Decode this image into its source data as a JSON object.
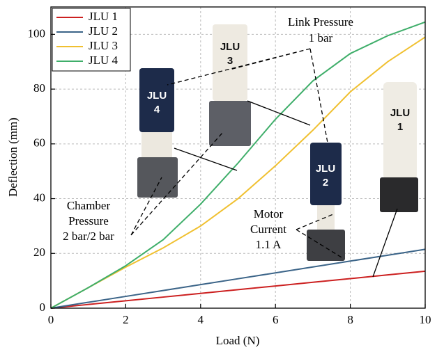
{
  "chart_data": {
    "type": "line",
    "xlabel": "Load (N)",
    "ylabel": "Deflection (mm)",
    "xlim": [
      0,
      10
    ],
    "ylim": [
      0,
      110
    ],
    "xticks": [
      0,
      2,
      4,
      6,
      8,
      10
    ],
    "yticks": [
      0,
      20,
      40,
      60,
      80,
      100
    ],
    "grid": true,
    "legend": "upper left",
    "x": [
      0,
      1,
      2,
      3,
      4,
      5,
      6,
      7,
      8,
      9,
      10
    ],
    "series": [
      {
        "name": "JLU 1",
        "color": "#cc2020",
        "values": [
          0,
          1.35,
          2.7,
          4.05,
          5.4,
          6.75,
          8.1,
          9.45,
          10.8,
          12.15,
          13.5
        ]
      },
      {
        "name": "JLU 2",
        "color": "#3b6488",
        "values": [
          0,
          2.15,
          4.3,
          6.45,
          8.6,
          10.75,
          12.9,
          15.05,
          17.2,
          19.35,
          21.5
        ]
      },
      {
        "name": "JLU 3",
        "color": "#f0c030",
        "values": [
          0,
          7.5,
          15,
          22,
          30,
          40,
          52,
          65,
          79,
          90,
          99
        ]
      },
      {
        "name": "JLU 4",
        "color": "#3fae6a",
        "values": [
          0,
          7.5,
          15.5,
          25,
          38,
          53,
          69,
          83,
          93,
          99.5,
          104.5
        ]
      }
    ],
    "annotations": [
      [
        "Link Pressure",
        "1 bar"
      ],
      [
        "Chamber",
        "Pressure",
        "2 bar/2 bar"
      ],
      [
        "Motor",
        "Current",
        "1.1 A"
      ]
    ],
    "photo_labels": [
      [
        "JLU",
        "4"
      ],
      [
        "JLU",
        "3"
      ],
      [
        "JLU",
        "2"
      ],
      [
        "JLU",
        "1"
      ]
    ]
  }
}
